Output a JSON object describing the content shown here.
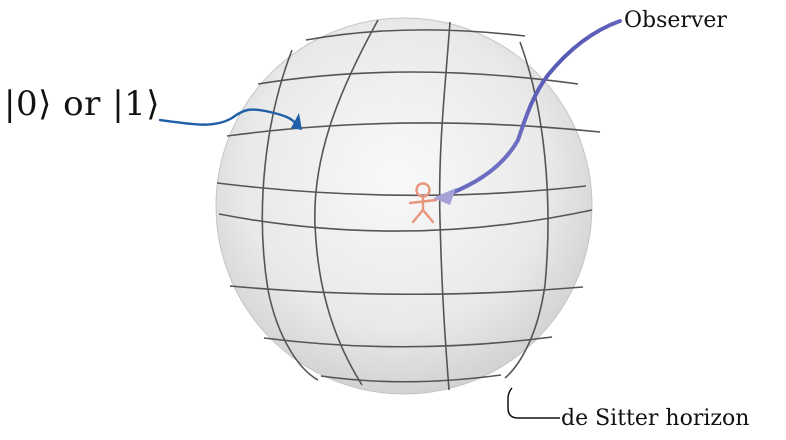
{
  "labels": {
    "state": "|0⟩ or |1⟩",
    "observer": "Observer",
    "horizon": "de Sitter horizon"
  },
  "colors": {
    "sphere_fill_light": "#f7f7f7",
    "sphere_fill_dark": "#cfcfcf",
    "grid_line": "#555555",
    "observer_figure": "#e8957d",
    "arrow_state": "#1e5fa8",
    "arrow_observer": "#2a2f8a",
    "arrow_observer_light": "#a7a3d8"
  },
  "icons": {
    "observer": "stick-figure-icon",
    "state_arrow": "arrow-icon",
    "observer_arrow": "arrow-icon",
    "horizon_pointer": "pointer-line-icon"
  }
}
